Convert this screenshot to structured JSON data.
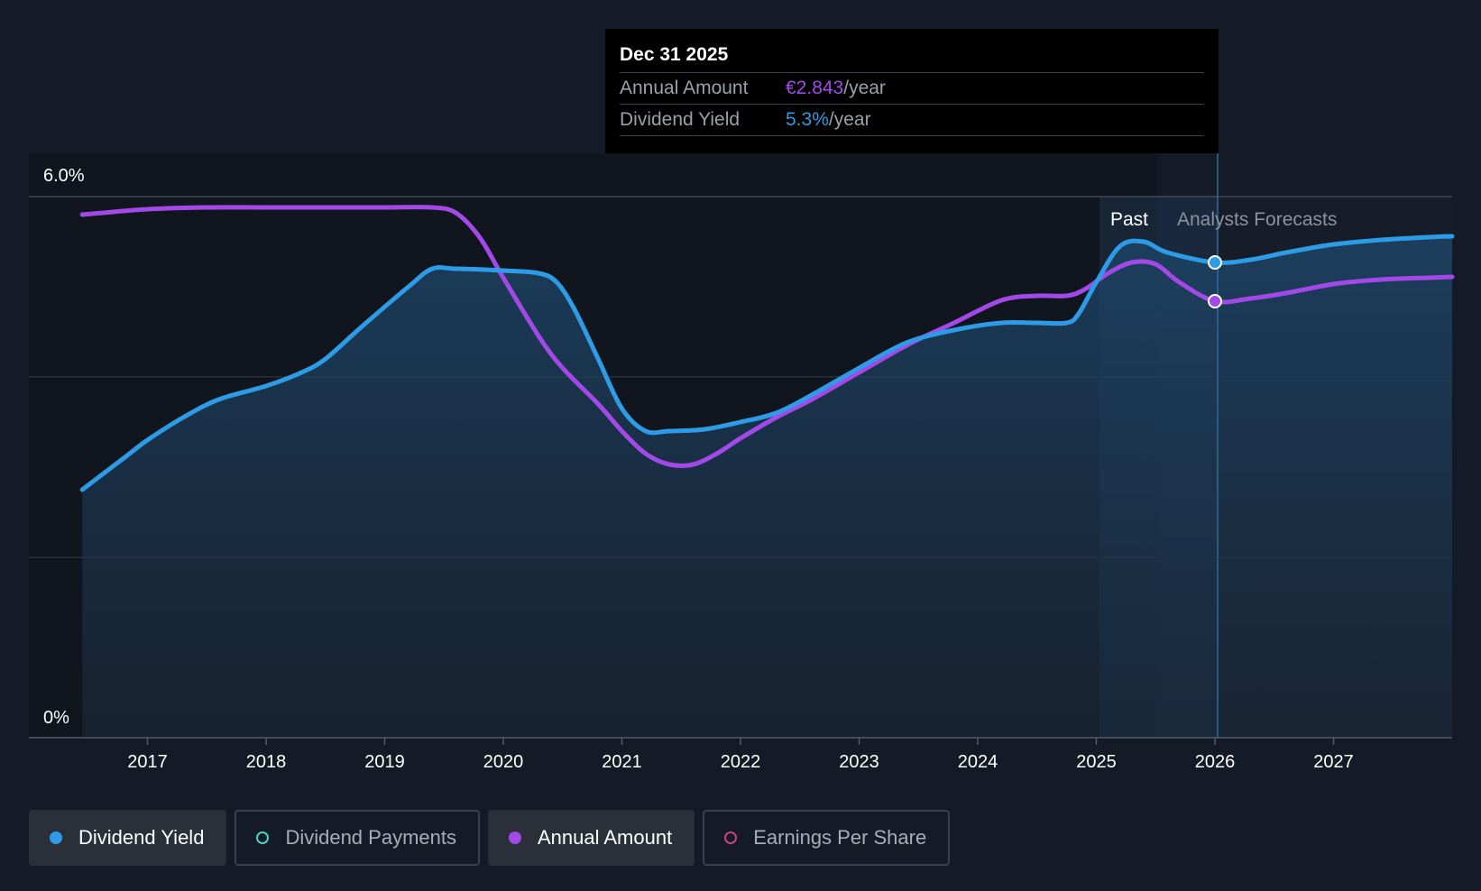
{
  "tooltip": {
    "date": "Dec 31 2025",
    "rows": [
      {
        "label": "Annual Amount",
        "value": "€2.843",
        "unit": "/year",
        "color": "#a349e8"
      },
      {
        "label": "Dividend Yield",
        "value": "5.3%",
        "unit": "/year",
        "color": "#2d9be6"
      }
    ]
  },
  "legend": [
    {
      "label": "Dividend Yield",
      "color": "#2d9be6",
      "state": "active",
      "marker": "filled"
    },
    {
      "label": "Dividend Payments",
      "color": "#4fd1c5",
      "state": "inactive",
      "marker": "hollow"
    },
    {
      "label": "Annual Amount",
      "color": "#a349e8",
      "state": "active",
      "marker": "filled"
    },
    {
      "label": "Earnings Per Share",
      "color": "#c4467a",
      "state": "inactive",
      "marker": "hollow"
    }
  ],
  "chart_data": {
    "type": "area",
    "title": "",
    "xlabel": "",
    "ylabel": "",
    "y_ticks": [
      "0%",
      "6.0%"
    ],
    "ylim": [
      0,
      6.0
    ],
    "xlim": [
      2016.0,
      2028.0
    ],
    "x_ticks": [
      "2017",
      "2018",
      "2019",
      "2020",
      "2021",
      "2022",
      "2023",
      "2024",
      "2025",
      "2026",
      "2027"
    ],
    "grid": true,
    "regions": [
      {
        "label": "Past",
        "from": 2025.0,
        "to": 2026.0
      },
      {
        "label": "Analysts Forecasts",
        "from": 2026.0,
        "to": 2028.0
      }
    ],
    "highlight": {
      "x": 2026.0,
      "label": "Dec 31 2025"
    },
    "series": [
      {
        "name": "Dividend Yield",
        "color": "#2d9be6",
        "fill": true,
        "x": [
          2016.45,
          2016.8,
          2017.0,
          2017.3,
          2017.6,
          2018.0,
          2018.3,
          2018.5,
          2018.8,
          2019.2,
          2019.4,
          2019.6,
          2020.0,
          2020.3,
          2020.45,
          2020.6,
          2020.8,
          2021.0,
          2021.2,
          2021.4,
          2021.7,
          2022.0,
          2022.3,
          2022.6,
          2023.0,
          2023.4,
          2023.8,
          2024.2,
          2024.5,
          2024.75,
          2024.85,
          2025.0,
          2025.2,
          2025.4,
          2025.6,
          2026.0,
          2026.3,
          2026.6,
          2027.0,
          2027.4,
          2027.8,
          2028.0
        ],
        "values": [
          2.75,
          3.1,
          3.3,
          3.55,
          3.75,
          3.9,
          4.05,
          4.2,
          4.55,
          5.0,
          5.2,
          5.2,
          5.18,
          5.15,
          5.05,
          4.75,
          4.2,
          3.65,
          3.4,
          3.4,
          3.42,
          3.5,
          3.6,
          3.8,
          4.1,
          4.38,
          4.52,
          4.6,
          4.6,
          4.6,
          4.7,
          5.05,
          5.45,
          5.5,
          5.38,
          5.27,
          5.3,
          5.38,
          5.47,
          5.52,
          5.55,
          5.56
        ]
      },
      {
        "name": "Annual Amount",
        "color": "#a349e8",
        "fill": false,
        "x": [
          2016.45,
          2017.0,
          2017.5,
          2018.0,
          2018.5,
          2019.0,
          2019.4,
          2019.6,
          2019.8,
          2020.0,
          2020.3,
          2020.5,
          2020.8,
          2021.0,
          2021.2,
          2021.4,
          2021.6,
          2021.8,
          2022.0,
          2022.3,
          2022.6,
          2023.0,
          2023.4,
          2023.8,
          2024.2,
          2024.5,
          2024.75,
          2024.9,
          2025.1,
          2025.3,
          2025.5,
          2025.7,
          2026.0,
          2026.3,
          2026.6,
          2027.0,
          2027.4,
          2027.8,
          2028.0
        ],
        "values": [
          5.8,
          5.86,
          5.88,
          5.88,
          5.88,
          5.88,
          5.88,
          5.82,
          5.55,
          5.1,
          4.45,
          4.1,
          3.7,
          3.4,
          3.15,
          3.03,
          3.03,
          3.15,
          3.32,
          3.55,
          3.75,
          4.05,
          4.35,
          4.6,
          4.85,
          4.9,
          4.9,
          4.97,
          5.15,
          5.27,
          5.25,
          5.05,
          4.84,
          4.87,
          4.93,
          5.03,
          5.08,
          5.1,
          5.11
        ]
      }
    ]
  }
}
